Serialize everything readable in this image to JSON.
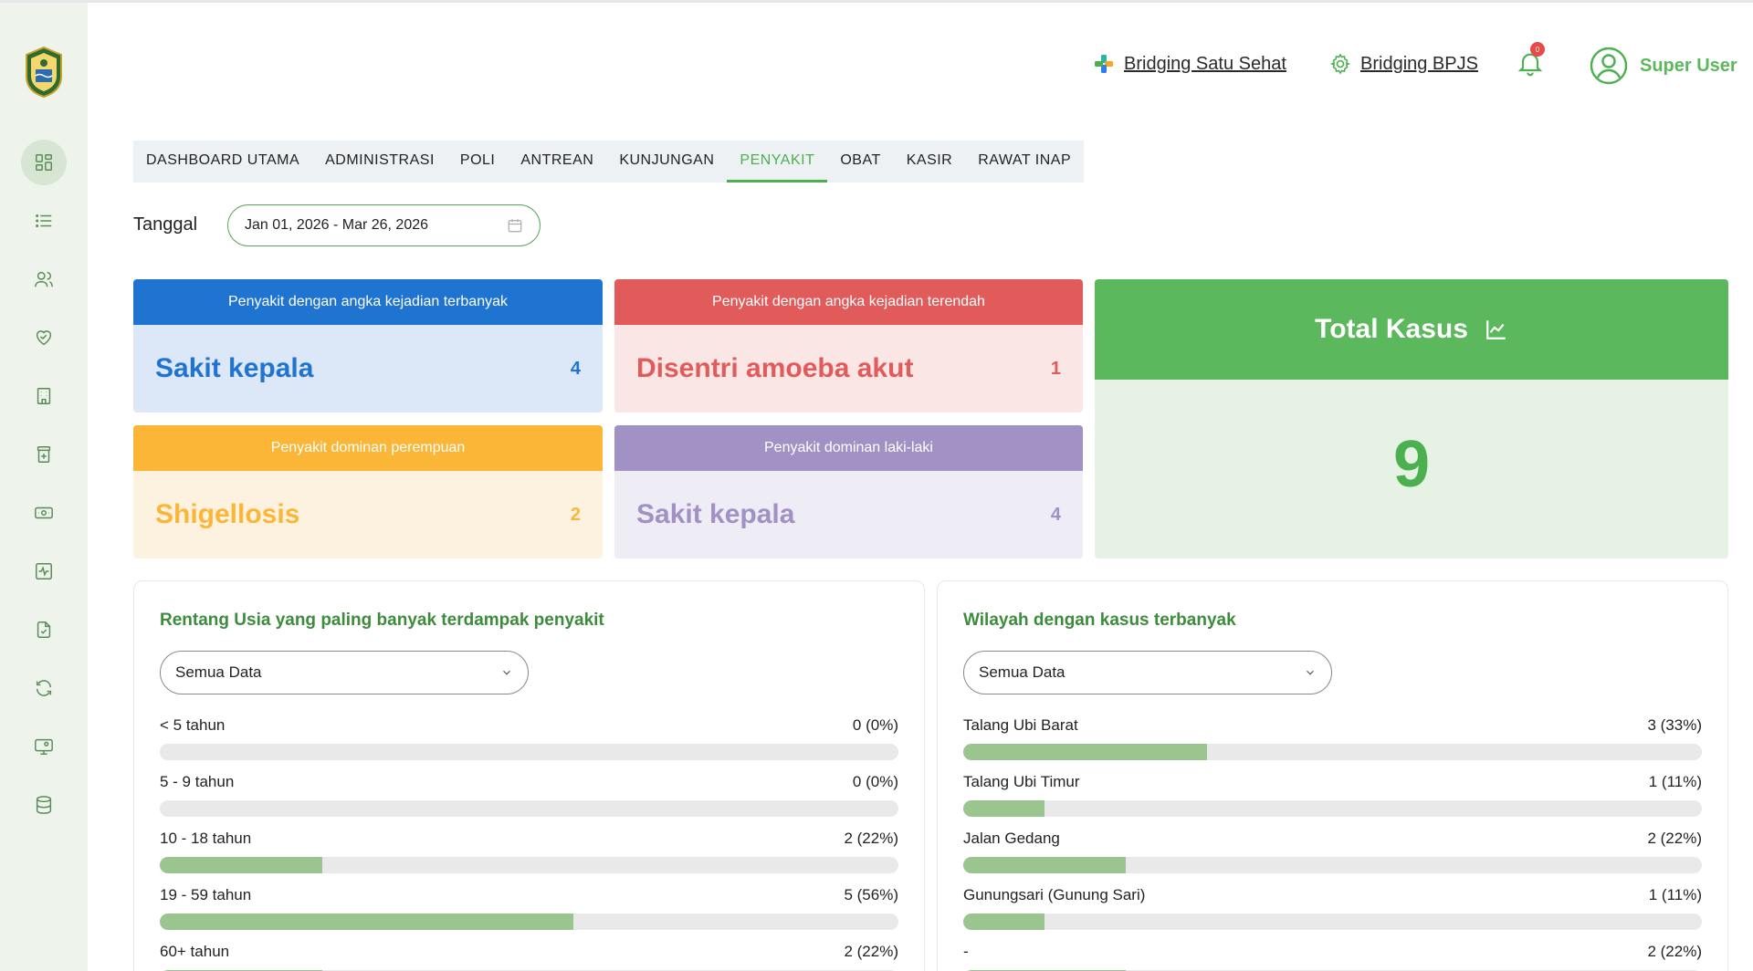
{
  "header": {
    "links": [
      {
        "label": "Bridging Satu Sehat",
        "icon": "satu-sehat-icon"
      },
      {
        "label": "Bridging BPJS",
        "icon": "bpjs-gear-icon"
      }
    ],
    "notification_count": "0",
    "user_name": "Super User"
  },
  "sidebar": {
    "items": [
      {
        "icon": "dashboard-icon",
        "active": true
      },
      {
        "icon": "list-icon"
      },
      {
        "icon": "users-icon"
      },
      {
        "icon": "heart-handshake-icon"
      },
      {
        "icon": "building-icon"
      },
      {
        "icon": "pharmacy-icon"
      },
      {
        "icon": "cash-icon"
      },
      {
        "icon": "activity-icon"
      },
      {
        "icon": "document-check-icon"
      },
      {
        "icon": "refresh-icon"
      },
      {
        "icon": "monitor-user-icon"
      },
      {
        "icon": "database-icon"
      }
    ]
  },
  "tabs": [
    {
      "label": "DASHBOARD UTAMA"
    },
    {
      "label": "ADMINISTRASI"
    },
    {
      "label": "POLI"
    },
    {
      "label": "ANTREAN"
    },
    {
      "label": "KUNJUNGAN"
    },
    {
      "label": "PENYAKIT",
      "active": true
    },
    {
      "label": "OBAT"
    },
    {
      "label": "KASIR"
    },
    {
      "label": "RAWAT INAP"
    }
  ],
  "filter": {
    "date_label": "Tanggal",
    "date_range": "Jan 01, 2026 - Mar 26, 2026"
  },
  "cards": {
    "most": {
      "title": "Penyakit dengan angka kejadian terbanyak",
      "name": "Sakit kepala",
      "count": "4",
      "color": "#1f73d1"
    },
    "least": {
      "title": "Penyakit dengan angka kejadian terendah",
      "name": "Disentri amoeba akut",
      "count": "1",
      "color": "#e15b5b"
    },
    "female": {
      "title": "Penyakit dominan perempuan",
      "name": "Shigellosis",
      "count": "2",
      "color": "#fbb637"
    },
    "male": {
      "title": "Penyakit dominan laki-laki",
      "name": "Sakit kepala",
      "count": "4",
      "color": "#a291c5"
    }
  },
  "total": {
    "title": "Total Kasus",
    "value": "9",
    "color": "#5cb85c"
  },
  "age_panel": {
    "title": "Rentang Usia yang paling banyak terdampak penyakit",
    "select_value": "Semua Data",
    "rows": [
      {
        "label": "< 5 tahun",
        "value": "0 (0%)",
        "fraction": 0
      },
      {
        "label": "5 - 9 tahun",
        "value": "0 (0%)",
        "fraction": 0
      },
      {
        "label": "10 - 18 tahun",
        "value": "2 (22%)",
        "fraction": 0.22
      },
      {
        "label": "19 - 59 tahun",
        "value": "5 (56%)",
        "fraction": 0.56
      },
      {
        "label": "60+ tahun",
        "value": "2 (22%)",
        "fraction": 0.22
      }
    ]
  },
  "region_panel": {
    "title": "Wilayah dengan kasus terbanyak",
    "select_value": "Semua Data",
    "rows": [
      {
        "label": "Talang Ubi Barat",
        "value": "3 (33%)",
        "fraction": 0.33
      },
      {
        "label": "Talang Ubi Timur",
        "value": "1 (11%)",
        "fraction": 0.11
      },
      {
        "label": "Jalan Gedang",
        "value": "2 (22%)",
        "fraction": 0.22
      },
      {
        "label": "Gunungsari (Gunung Sari)",
        "value": "1 (11%)",
        "fraction": 0.11
      },
      {
        "label": "-",
        "value": "2 (22%)",
        "fraction": 0.22
      }
    ]
  }
}
